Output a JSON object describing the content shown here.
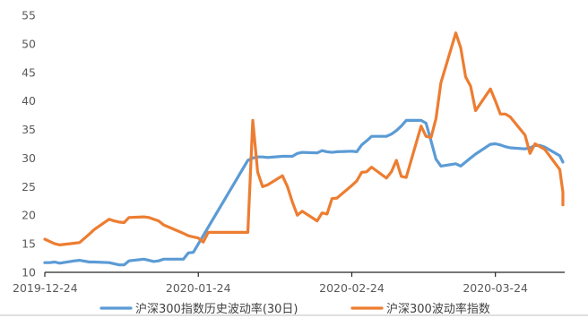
{
  "chart_data": {
    "type": "line",
    "title": "",
    "xlabel": "",
    "ylabel": "",
    "ylim": [
      10,
      55
    ],
    "yticks": [
      10,
      15,
      20,
      25,
      30,
      35,
      40,
      45,
      50,
      55
    ],
    "x_tick_labels": [
      "2019-12-24",
      "2020-01-24",
      "2020-02-24",
      "2020-03-24"
    ],
    "x_range": [
      "2019-12-24",
      "2020-04-07"
    ],
    "grid": false,
    "legend_position": "bottom",
    "series": [
      {
        "name": "沪深300指数历史波动率(30日)",
        "color": "#5B9BD5",
        "points": [
          [
            "2019-12-24",
            11.7
          ],
          [
            "2019-12-25",
            11.7
          ],
          [
            "2019-12-26",
            11.8
          ],
          [
            "2019-12-27",
            11.6
          ],
          [
            "2019-12-30",
            12.0
          ],
          [
            "2019-12-31",
            12.1
          ],
          [
            "2020-01-02",
            11.8
          ],
          [
            "2020-01-03",
            11.8
          ],
          [
            "2020-01-06",
            11.7
          ],
          [
            "2020-01-07",
            11.5
          ],
          [
            "2020-01-08",
            11.3
          ],
          [
            "2020-01-09",
            11.3
          ],
          [
            "2020-01-10",
            12.0
          ],
          [
            "2020-01-13",
            12.3
          ],
          [
            "2020-01-14",
            12.1
          ],
          [
            "2020-01-15",
            11.9
          ],
          [
            "2020-01-16",
            12.0
          ],
          [
            "2020-01-17",
            12.3
          ],
          [
            "2020-01-20",
            12.3
          ],
          [
            "2020-01-21",
            12.3
          ],
          [
            "2020-01-22",
            13.4
          ],
          [
            "2020-01-23",
            13.5
          ],
          [
            "2020-02-03",
            29.6
          ],
          [
            "2020-02-04",
            30.0
          ],
          [
            "2020-02-05",
            30.2
          ],
          [
            "2020-02-06",
            30.2
          ],
          [
            "2020-02-07",
            30.1
          ],
          [
            "2020-02-10",
            30.3
          ],
          [
            "2020-02-11",
            30.3
          ],
          [
            "2020-02-12",
            30.3
          ],
          [
            "2020-02-13",
            30.8
          ],
          [
            "2020-02-14",
            31.0
          ],
          [
            "2020-02-17",
            30.9
          ],
          [
            "2020-02-18",
            31.3
          ],
          [
            "2020-02-19",
            31.1
          ],
          [
            "2020-02-20",
            31.0
          ],
          [
            "2020-02-21",
            31.1
          ],
          [
            "2020-02-24",
            31.2
          ],
          [
            "2020-02-25",
            31.1
          ],
          [
            "2020-02-26",
            32.3
          ],
          [
            "2020-02-27",
            33.0
          ],
          [
            "2020-02-28",
            33.8
          ],
          [
            "2020-03-02",
            33.8
          ],
          [
            "2020-03-03",
            34.2
          ],
          [
            "2020-03-04",
            34.8
          ],
          [
            "2020-03-05",
            35.6
          ],
          [
            "2020-03-06",
            36.6
          ],
          [
            "2020-03-09",
            36.6
          ],
          [
            "2020-03-10",
            36.1
          ],
          [
            "2020-03-11",
            33.0
          ],
          [
            "2020-03-12",
            29.8
          ],
          [
            "2020-03-13",
            28.6
          ],
          [
            "2020-03-16",
            29.0
          ],
          [
            "2020-03-17",
            28.6
          ],
          [
            "2020-03-18",
            29.3
          ],
          [
            "2020-03-19",
            30.0
          ],
          [
            "2020-03-20",
            30.7
          ],
          [
            "2020-03-23",
            32.4
          ],
          [
            "2020-03-24",
            32.5
          ],
          [
            "2020-03-25",
            32.3
          ],
          [
            "2020-03-26",
            32.0
          ],
          [
            "2020-03-27",
            31.8
          ],
          [
            "2020-03-30",
            31.6
          ],
          [
            "2020-03-31",
            31.8
          ],
          [
            "2020-04-01",
            32.2
          ],
          [
            "2020-04-02",
            32.2
          ],
          [
            "2020-04-03",
            31.9
          ],
          [
            "2020-04-06",
            30.4
          ],
          [
            "2020-04-07",
            29.3
          ]
        ]
      },
      {
        "name": "沪深300波动率指数",
        "color": "#ED7D31",
        "points": [
          [
            "2019-12-24",
            15.8
          ],
          [
            "2019-12-25",
            15.4
          ],
          [
            "2019-12-26",
            15.0
          ],
          [
            "2019-12-27",
            14.8
          ],
          [
            "2019-12-30",
            15.1
          ],
          [
            "2019-12-31",
            15.2
          ],
          [
            "2020-01-02",
            16.7
          ],
          [
            "2020-01-03",
            17.5
          ],
          [
            "2020-01-06",
            19.3
          ],
          [
            "2020-01-07",
            19.0
          ],
          [
            "2020-01-08",
            18.8
          ],
          [
            "2020-01-09",
            18.7
          ],
          [
            "2020-01-10",
            19.6
          ],
          [
            "2020-01-13",
            19.7
          ],
          [
            "2020-01-14",
            19.6
          ],
          [
            "2020-01-15",
            19.3
          ],
          [
            "2020-01-16",
            19.0
          ],
          [
            "2020-01-17",
            18.3
          ],
          [
            "2020-01-20",
            17.2
          ],
          [
            "2020-01-21",
            16.8
          ],
          [
            "2020-01-22",
            16.4
          ],
          [
            "2020-01-23",
            16.2
          ],
          [
            "2020-01-24",
            16.0
          ],
          [
            "2020-01-25",
            15.3
          ],
          [
            "2020-01-26",
            17.0
          ],
          [
            "2020-02-03",
            17.0
          ],
          [
            "2020-02-04",
            36.6
          ],
          [
            "2020-02-05",
            27.5
          ],
          [
            "2020-02-06",
            25.0
          ],
          [
            "2020-02-07",
            25.3
          ],
          [
            "2020-02-10",
            26.9
          ],
          [
            "2020-02-11",
            25.0
          ],
          [
            "2020-02-12",
            22.3
          ],
          [
            "2020-02-13",
            20.0
          ],
          [
            "2020-02-14",
            20.7
          ],
          [
            "2020-02-17",
            19.0
          ],
          [
            "2020-02-18",
            20.4
          ],
          [
            "2020-02-19",
            20.2
          ],
          [
            "2020-02-20",
            22.9
          ],
          [
            "2020-02-21",
            23.0
          ],
          [
            "2020-02-24",
            25.2
          ],
          [
            "2020-02-25",
            26.0
          ],
          [
            "2020-02-26",
            27.5
          ],
          [
            "2020-02-27",
            27.6
          ],
          [
            "2020-02-28",
            28.4
          ],
          [
            "2020-03-02",
            26.5
          ],
          [
            "2020-03-03",
            27.6
          ],
          [
            "2020-03-04",
            29.6
          ],
          [
            "2020-03-05",
            26.8
          ],
          [
            "2020-03-06",
            26.6
          ],
          [
            "2020-03-09",
            35.6
          ],
          [
            "2020-03-10",
            33.8
          ],
          [
            "2020-03-11",
            33.6
          ],
          [
            "2020-03-12",
            36.9
          ],
          [
            "2020-03-13",
            43.2
          ],
          [
            "2020-03-16",
            51.9
          ],
          [
            "2020-03-17",
            49.3
          ],
          [
            "2020-03-18",
            44.2
          ],
          [
            "2020-03-19",
            42.6
          ],
          [
            "2020-03-20",
            38.3
          ],
          [
            "2020-03-23",
            42.1
          ],
          [
            "2020-03-24",
            40.0
          ],
          [
            "2020-03-25",
            37.7
          ],
          [
            "2020-03-26",
            37.7
          ],
          [
            "2020-03-27",
            37.2
          ],
          [
            "2020-03-30",
            34.0
          ],
          [
            "2020-03-31",
            30.8
          ],
          [
            "2020-04-01",
            32.5
          ],
          [
            "2020-04-02",
            32.0
          ],
          [
            "2020-04-03",
            31.5
          ],
          [
            "2020-04-06",
            28.0
          ],
          [
            "2020-04-07",
            24.0
          ],
          [
            "2020-04-08",
            23.5
          ],
          [
            "2020-04-09",
            23.3
          ],
          [
            "2020-04-10",
            22.8
          ],
          [
            "2020-04-11",
            22.6
          ],
          [
            "2020-04-12",
            21.8
          ]
        ]
      }
    ]
  }
}
